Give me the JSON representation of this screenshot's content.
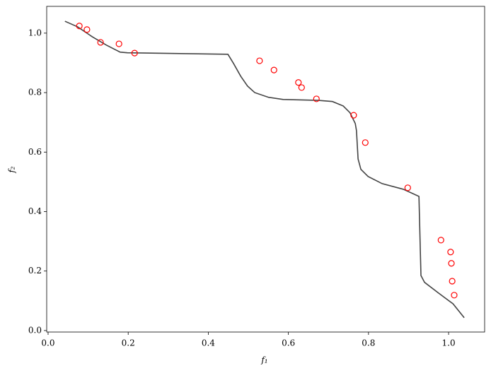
{
  "chart_data": {
    "type": "line",
    "x_label": "f₁",
    "y_label": "f₂",
    "xlim": [
      -0.0035,
      1.09
    ],
    "ylim": [
      -0.005,
      1.09
    ],
    "xticks": [
      {
        "value": 0,
        "label": "0.0"
      },
      {
        "value": 0.2,
        "label": "0.2"
      },
      {
        "value": 0.4,
        "label": "0.4"
      },
      {
        "value": 0.6,
        "label": "0.6"
      },
      {
        "value": 0.8,
        "label": "0.8"
      },
      {
        "value": 1,
        "label": "1.0"
      }
    ],
    "yticks": [
      {
        "value": 0,
        "label": "0.0"
      },
      {
        "value": 0.2,
        "label": "0.2"
      },
      {
        "value": 0.4,
        "label": "0.4"
      },
      {
        "value": 0.6,
        "label": "0.6"
      },
      {
        "value": 0.8,
        "label": "0.8"
      },
      {
        "value": 1,
        "label": "1.0"
      }
    ],
    "grid": false,
    "series": [
      {
        "type": "line",
        "color": "#444444",
        "x": [
          0.042,
          0.074,
          0.11,
          0.145,
          0.18,
          0.198,
          0.449,
          0.463,
          0.481,
          0.498,
          0.516,
          0.551,
          0.587,
          0.675,
          0.71,
          0.737,
          0.754,
          0.767,
          0.77,
          0.774,
          0.781,
          0.799,
          0.834,
          0.887,
          0.926,
          0.931,
          0.94,
          0.975,
          1.011,
          1.039
        ],
        "values": [
          1.04,
          1.021,
          0.988,
          0.96,
          0.936,
          0.934,
          0.929,
          0.898,
          0.855,
          0.822,
          0.8,
          0.784,
          0.777,
          0.774,
          0.77,
          0.755,
          0.732,
          0.696,
          0.672,
          0.577,
          0.542,
          0.518,
          0.494,
          0.475,
          0.451,
          0.185,
          0.162,
          0.126,
          0.09,
          0.043
        ]
      },
      {
        "type": "scatter",
        "color": "#ff0000",
        "x": [
          0.078,
          0.097,
          0.131,
          0.177,
          0.216,
          0.528,
          0.564,
          0.625,
          0.633,
          0.67,
          0.763,
          0.792,
          0.898,
          0.981,
          1.005,
          1.007,
          1.009,
          1.014
        ],
        "values": [
          1.024,
          1.012,
          0.969,
          0.964,
          0.933,
          0.907,
          0.876,
          0.834,
          0.817,
          0.779,
          0.724,
          0.632,
          0.48,
          0.304,
          0.264,
          0.226,
          0.166,
          0.119
        ]
      }
    ]
  }
}
